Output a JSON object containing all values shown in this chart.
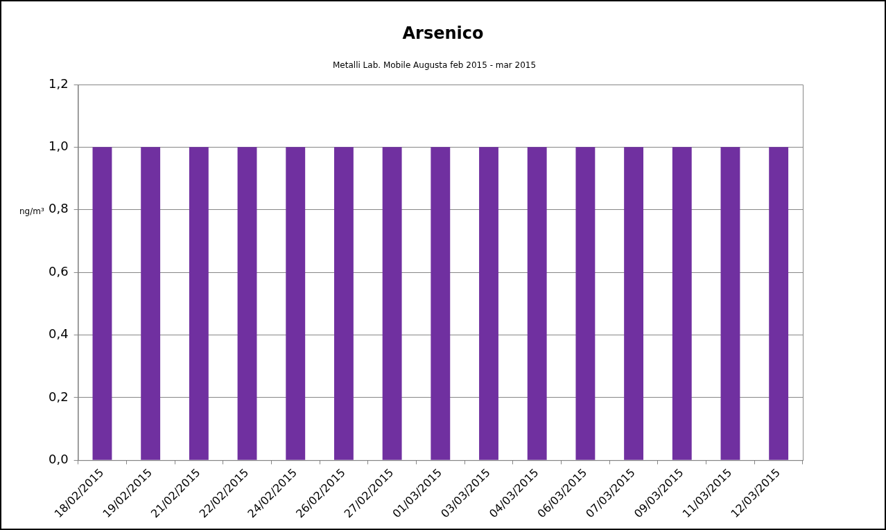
{
  "chart_data": {
    "type": "bar",
    "title": "Arsenico",
    "subtitle": "Metalli Lab. Mobile Augusta feb 2015 - mar 2015",
    "ylabel": "ng/m³",
    "categories": [
      "18/02/2015",
      "19/02/2015",
      "21/02/2015",
      "22/02/2015",
      "24/02/2015",
      "26/02/2015",
      "27/02/2015",
      "01/03/2015",
      "03/03/2015",
      "04/03/2015",
      "06/03/2015",
      "07/03/2015",
      "09/03/2015",
      "11/03/2015",
      "12/03/2015"
    ],
    "values": [
      1,
      1,
      1,
      1,
      1,
      1,
      1,
      1,
      1,
      1,
      1,
      1,
      1,
      1,
      1
    ],
    "color": "#7030a0",
    "ylim": [
      0,
      1.2
    ],
    "yticks": [
      {
        "value": 0,
        "label": "0,0"
      },
      {
        "value": 0.2,
        "label": "0,2"
      },
      {
        "value": 0.4,
        "label": "0,4"
      },
      {
        "value": 0.6,
        "label": "0,6"
      },
      {
        "value": 0.8,
        "label": "0,8"
      },
      {
        "value": 1,
        "label": "1,0"
      },
      {
        "value": 1.2,
        "label": "1,2"
      }
    ],
    "grid": "y",
    "legend": false
  }
}
